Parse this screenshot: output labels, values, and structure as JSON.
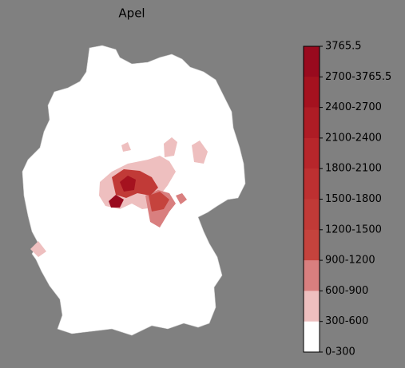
{
  "title": "Apel",
  "colorbar": {
    "labels": [
      "3765.5",
      "2700-3765.5",
      "2400-2700",
      "2100-2400",
      "1800-2100",
      "1500-1800",
      "1200-1500",
      "900-1200",
      "600-900",
      "300-600",
      "0-300"
    ],
    "colors": [
      "#990a1e",
      "#a5121f",
      "#ae1c25",
      "#b7262b",
      "#bd3031",
      "#c13a37",
      "#c5433d",
      "#d97f7f",
      "#eebfbf",
      "#ffffff"
    ]
  }
}
